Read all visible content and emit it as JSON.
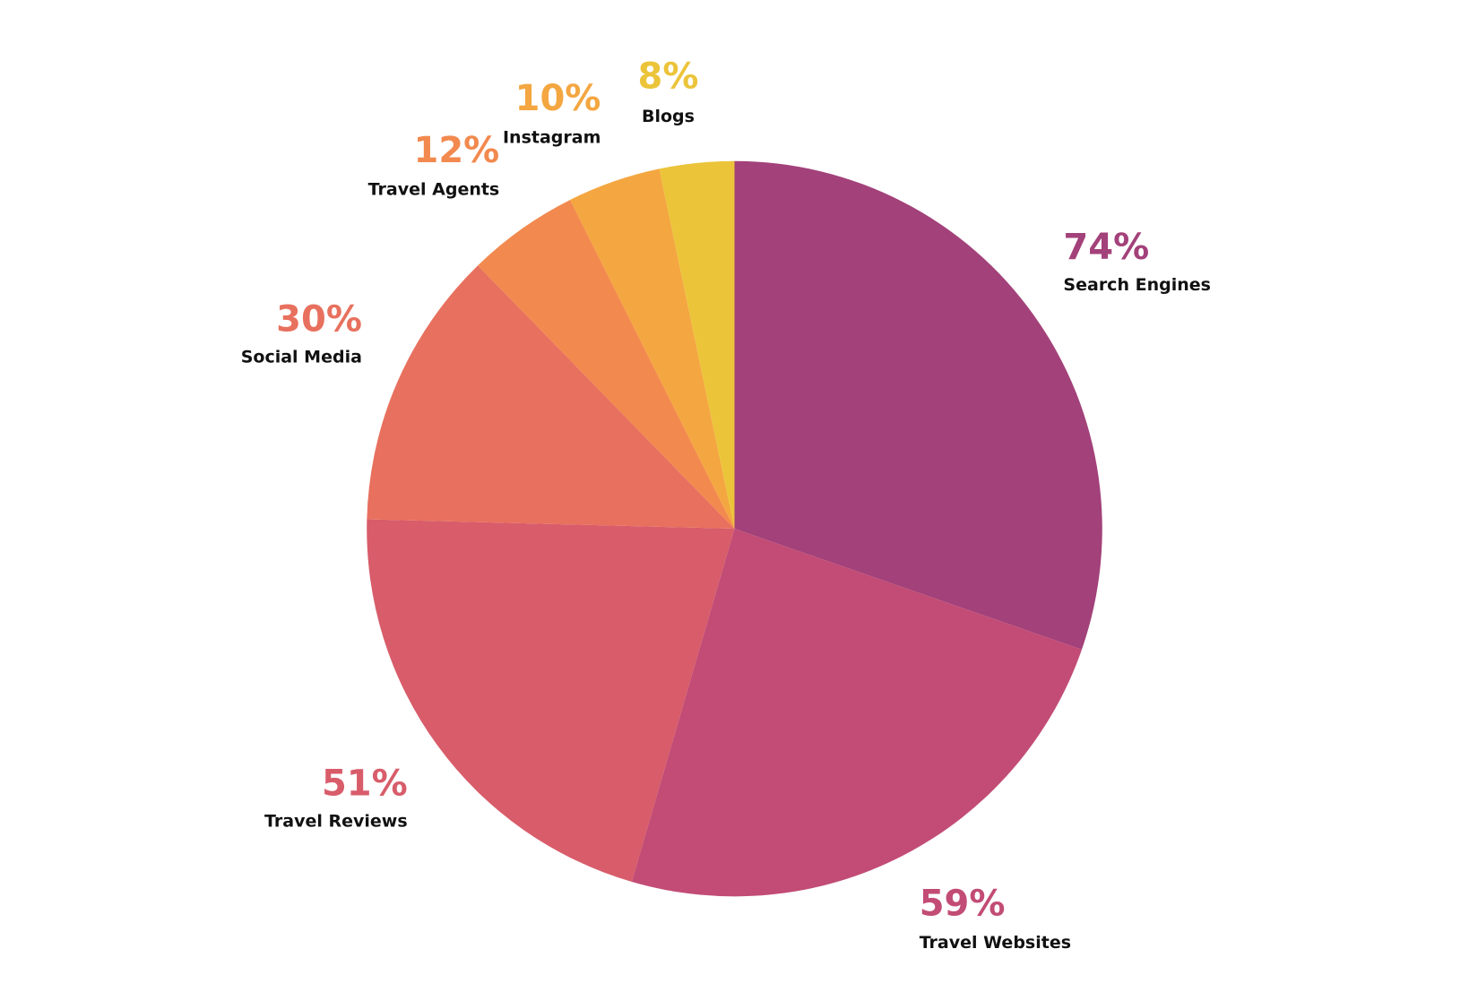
{
  "chart_data": {
    "type": "pie",
    "categories": [
      "Search Engines",
      "Travel Websites",
      "Travel Reviews",
      "Social Media",
      "Travel Agents",
      "Instagram",
      "Blogs"
    ],
    "values": [
      74,
      59,
      51,
      30,
      12,
      10,
      8
    ],
    "value_labels": [
      "74%",
      "59%",
      "51%",
      "30%",
      "12%",
      "10%",
      "8%"
    ],
    "colors": [
      "#a3417a",
      "#c24c75",
      "#d85c6a",
      "#e8705e",
      "#f2894e",
      "#f4a640",
      "#ecc43a"
    ]
  }
}
